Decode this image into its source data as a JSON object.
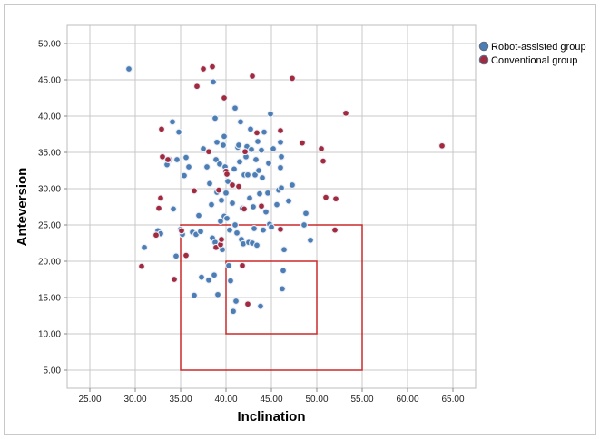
{
  "chart_data": {
    "type": "scatter",
    "xlabel": "Inclination",
    "ylabel": "Anteversion",
    "xlim": [
      22.5,
      67.5
    ],
    "ylim": [
      2.5,
      52.5
    ],
    "x_ticks": [
      "25.00",
      "30.00",
      "35.00",
      "40.00",
      "45.00",
      "50.00",
      "55.00",
      "60.00",
      "65.00"
    ],
    "y_ticks": [
      "5.00",
      "10.00",
      "15.00",
      "20.00",
      "25.00",
      "30.00",
      "35.00",
      "40.00",
      "45.00",
      "50.00"
    ],
    "grid": true,
    "legend_position": "top-right",
    "series": [
      {
        "name": "Robot-assisted group",
        "color": "#4c7db5",
        "points": [
          [
            29.3,
            46.5
          ],
          [
            31.0,
            21.9
          ],
          [
            32.5,
            24.2
          ],
          [
            32.8,
            23.8
          ],
          [
            33.5,
            33.3
          ],
          [
            33.8,
            34.0
          ],
          [
            34.1,
            39.2
          ],
          [
            34.2,
            27.2
          ],
          [
            34.5,
            20.7
          ],
          [
            34.6,
            34.0
          ],
          [
            34.8,
            37.8
          ],
          [
            35.0,
            24.4
          ],
          [
            35.2,
            23.7
          ],
          [
            35.4,
            31.8
          ],
          [
            35.6,
            34.3
          ],
          [
            35.9,
            33.0
          ],
          [
            36.3,
            24.0
          ],
          [
            36.5,
            15.3
          ],
          [
            36.7,
            23.7
          ],
          [
            37.0,
            26.3
          ],
          [
            37.2,
            24.1
          ],
          [
            37.3,
            17.8
          ],
          [
            37.5,
            35.5
          ],
          [
            37.9,
            33.0
          ],
          [
            38.1,
            17.4
          ],
          [
            38.2,
            30.7
          ],
          [
            38.4,
            27.8
          ],
          [
            38.5,
            23.2
          ],
          [
            38.6,
            44.7
          ],
          [
            38.7,
            18.1
          ],
          [
            38.8,
            22.6
          ],
          [
            38.8,
            39.7
          ],
          [
            38.9,
            34.0
          ],
          [
            39.0,
            36.4
          ],
          [
            39.0,
            29.5
          ],
          [
            39.1,
            15.4
          ],
          [
            39.3,
            33.4
          ],
          [
            39.4,
            25.5
          ],
          [
            39.5,
            28.4
          ],
          [
            39.6,
            21.6
          ],
          [
            39.7,
            36.0
          ],
          [
            39.8,
            37.2
          ],
          [
            39.8,
            26.2
          ],
          [
            39.9,
            33.0
          ],
          [
            40.0,
            29.4
          ],
          [
            40.1,
            25.9
          ],
          [
            40.2,
            31.0
          ],
          [
            40.3,
            19.4
          ],
          [
            40.4,
            24.3
          ],
          [
            40.5,
            17.3
          ],
          [
            40.7,
            28.0
          ],
          [
            40.8,
            13.1
          ],
          [
            40.9,
            32.7
          ],
          [
            41.0,
            41.1
          ],
          [
            41.0,
            25.0
          ],
          [
            41.1,
            14.5
          ],
          [
            41.2,
            23.9
          ],
          [
            41.3,
            35.7
          ],
          [
            41.4,
            36.0
          ],
          [
            41.5,
            33.7
          ],
          [
            41.6,
            39.2
          ],
          [
            41.7,
            23.0
          ],
          [
            41.8,
            27.3
          ],
          [
            41.9,
            22.4
          ],
          [
            42.0,
            31.9
          ],
          [
            42.2,
            34.4
          ],
          [
            42.3,
            35.8
          ],
          [
            42.4,
            31.9
          ],
          [
            42.5,
            22.6
          ],
          [
            42.6,
            28.7
          ],
          [
            42.7,
            38.2
          ],
          [
            42.8,
            35.4
          ],
          [
            42.9,
            22.5
          ],
          [
            43.0,
            27.5
          ],
          [
            43.1,
            24.5
          ],
          [
            43.2,
            31.9
          ],
          [
            43.3,
            34.0
          ],
          [
            43.4,
            22.2
          ],
          [
            43.5,
            36.5
          ],
          [
            43.6,
            32.5
          ],
          [
            43.7,
            29.3
          ],
          [
            43.8,
            13.8
          ],
          [
            43.9,
            35.3
          ],
          [
            44.0,
            31.5
          ],
          [
            44.1,
            24.3
          ],
          [
            44.2,
            37.8
          ],
          [
            44.4,
            26.8
          ],
          [
            44.6,
            29.4
          ],
          [
            44.7,
            33.5
          ],
          [
            44.8,
            25.1
          ],
          [
            44.9,
            40.3
          ],
          [
            45.0,
            24.7
          ],
          [
            45.2,
            35.5
          ],
          [
            45.6,
            27.8
          ],
          [
            45.8,
            29.8
          ],
          [
            46.0,
            36.4
          ],
          [
            46.0,
            32.9
          ],
          [
            46.1,
            34.4
          ],
          [
            46.1,
            30.1
          ],
          [
            46.2,
            16.2
          ],
          [
            46.3,
            18.7
          ],
          [
            46.4,
            21.6
          ],
          [
            46.9,
            28.3
          ],
          [
            47.3,
            30.5
          ],
          [
            48.6,
            25.0
          ],
          [
            48.8,
            26.6
          ],
          [
            49.3,
            22.9
          ]
        ]
      },
      {
        "name": "Conventional group",
        "color": "#a3293f",
        "points": [
          [
            30.7,
            19.3
          ],
          [
            32.3,
            23.6
          ],
          [
            32.6,
            27.3
          ],
          [
            32.8,
            28.7
          ],
          [
            32.9,
            38.2
          ],
          [
            33.0,
            34.4
          ],
          [
            33.6,
            34.0
          ],
          [
            34.3,
            17.5
          ],
          [
            35.1,
            24.2
          ],
          [
            35.6,
            20.8
          ],
          [
            36.5,
            29.7
          ],
          [
            36.8,
            44.1
          ],
          [
            37.5,
            46.5
          ],
          [
            38.1,
            35.1
          ],
          [
            38.5,
            46.8
          ],
          [
            38.9,
            21.9
          ],
          [
            39.2,
            29.8
          ],
          [
            39.4,
            22.3
          ],
          [
            39.5,
            23.0
          ],
          [
            39.8,
            42.5
          ],
          [
            40.0,
            32.4
          ],
          [
            40.1,
            32.0
          ],
          [
            40.7,
            30.5
          ],
          [
            41.4,
            30.3
          ],
          [
            41.8,
            19.4
          ],
          [
            42.0,
            27.2
          ],
          [
            42.1,
            35.1
          ],
          [
            42.4,
            14.1
          ],
          [
            42.9,
            45.5
          ],
          [
            43.4,
            37.7
          ],
          [
            43.9,
            27.6
          ],
          [
            46.0,
            24.4
          ],
          [
            46.0,
            38.0
          ],
          [
            47.3,
            45.2
          ],
          [
            48.4,
            36.3
          ],
          [
            50.5,
            35.5
          ],
          [
            50.7,
            33.8
          ],
          [
            51.0,
            28.8
          ],
          [
            52.0,
            24.3
          ],
          [
            52.1,
            28.6
          ],
          [
            53.2,
            40.4
          ],
          [
            63.8,
            35.9
          ]
        ]
      }
    ],
    "reference_boxes": [
      {
        "x_range": [
          35,
          55
        ],
        "y_range": [
          5,
          25
        ],
        "color": "#cc2a2a"
      },
      {
        "x_range": [
          40,
          50
        ],
        "y_range": [
          10,
          20
        ],
        "color": "#cc2a2a"
      }
    ]
  }
}
